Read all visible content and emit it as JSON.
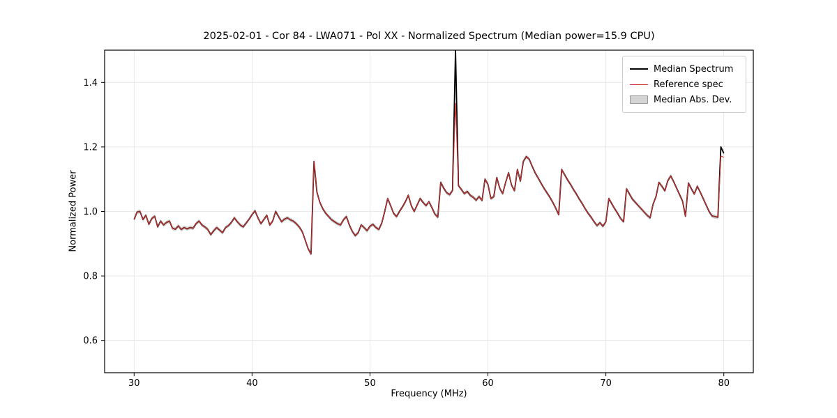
{
  "chart_data": {
    "type": "line",
    "title": "2025-02-01 - Cor 84 - LWA071 - Pol XX - Normalized Spectrum (Median power=15.9 CPU)",
    "xlabel": "Frequency (MHz)",
    "ylabel": "Normalized Power",
    "xlim": [
      27.5,
      82.5
    ],
    "ylim": [
      0.5,
      1.5
    ],
    "xticks": [
      30,
      40,
      50,
      60,
      70,
      80
    ],
    "xtick_labels": [
      "30",
      "40",
      "50",
      "60",
      "70",
      "80"
    ],
    "yticks": [
      0.6,
      0.8,
      1.0,
      1.2,
      1.4
    ],
    "ytick_labels": [
      "0.6",
      "0.8",
      "1.0",
      "1.2",
      "1.4"
    ],
    "grid": true,
    "legend_position": "upper right",
    "x_start": 30.0,
    "x_step": 0.25,
    "x_unit": "MHz",
    "mad_halfwidth": 0.006,
    "colors": {
      "median": "#000000",
      "reference": "#d93434",
      "mad_band": "#cccccc",
      "grid": "#e2e2e2",
      "frame": "#000000"
    },
    "legend": [
      {
        "label": "Median Spectrum",
        "swatch": "line-black"
      },
      {
        "label": "Reference spec",
        "swatch": "line-red"
      },
      {
        "label": "Median Abs. Dev.",
        "swatch": "band-gray"
      }
    ],
    "series": [
      {
        "name": "Median Spectrum",
        "color": "#000000",
        "linewidth": 1.8,
        "values": [
          0.975,
          0.998,
          1.0,
          0.975,
          0.988,
          0.96,
          0.978,
          0.985,
          0.952,
          0.97,
          0.958,
          0.966,
          0.97,
          0.948,
          0.945,
          0.955,
          0.944,
          0.95,
          0.946,
          0.95,
          0.948,
          0.962,
          0.97,
          0.958,
          0.952,
          0.944,
          0.928,
          0.94,
          0.95,
          0.942,
          0.934,
          0.95,
          0.956,
          0.966,
          0.98,
          0.968,
          0.958,
          0.952,
          0.964,
          0.976,
          0.99,
          1.002,
          0.98,
          0.962,
          0.975,
          0.988,
          0.958,
          0.97,
          1.0,
          0.984,
          0.968,
          0.976,
          0.98,
          0.974,
          0.97,
          0.962,
          0.952,
          0.938,
          0.912,
          0.885,
          0.868,
          1.155,
          1.06,
          1.028,
          1.008,
          0.994,
          0.984,
          0.974,
          0.968,
          0.962,
          0.958,
          0.974,
          0.984,
          0.958,
          0.938,
          0.925,
          0.934,
          0.958,
          0.95,
          0.94,
          0.954,
          0.96,
          0.95,
          0.944,
          0.964,
          1.0,
          1.04,
          1.018,
          0.994,
          0.984,
          1.0,
          1.014,
          1.03,
          1.05,
          1.018,
          1.0,
          1.02,
          1.04,
          1.028,
          1.018,
          1.03,
          1.012,
          0.992,
          0.982,
          1.09,
          1.072,
          1.058,
          1.052,
          1.065,
          1.5,
          1.08,
          1.068,
          1.055,
          1.062,
          1.05,
          1.044,
          1.035,
          1.046,
          1.034,
          1.1,
          1.084,
          1.04,
          1.046,
          1.105,
          1.072,
          1.055,
          1.09,
          1.12,
          1.082,
          1.064,
          1.13,
          1.094,
          1.155,
          1.17,
          1.162,
          1.14,
          1.12,
          1.104,
          1.088,
          1.072,
          1.058,
          1.044,
          1.028,
          1.01,
          0.99,
          1.13,
          1.114,
          1.098,
          1.084,
          1.068,
          1.054,
          1.038,
          1.024,
          1.008,
          0.994,
          0.982,
          0.968,
          0.956,
          0.965,
          0.954,
          0.968,
          1.04,
          1.024,
          1.008,
          0.994,
          0.978,
          0.968,
          1.07,
          1.054,
          1.038,
          1.028,
          1.018,
          1.008,
          0.998,
          0.988,
          0.98,
          1.022,
          1.046,
          1.09,
          1.078,
          1.064,
          1.095,
          1.11,
          1.092,
          1.072,
          1.052,
          1.032,
          0.985,
          1.088,
          1.07,
          1.054,
          1.078,
          1.06,
          1.04,
          1.02,
          1.0,
          0.986,
          0.984,
          0.982,
          1.2,
          1.18
        ]
      },
      {
        "name": "Reference spec",
        "color": "#d93434",
        "linewidth": 1.1,
        "values": [
          0.975,
          0.998,
          1.0,
          0.975,
          0.988,
          0.96,
          0.978,
          0.985,
          0.952,
          0.97,
          0.958,
          0.966,
          0.97,
          0.948,
          0.945,
          0.955,
          0.944,
          0.95,
          0.946,
          0.95,
          0.948,
          0.962,
          0.97,
          0.958,
          0.952,
          0.944,
          0.928,
          0.94,
          0.95,
          0.942,
          0.934,
          0.95,
          0.956,
          0.966,
          0.98,
          0.968,
          0.958,
          0.952,
          0.964,
          0.976,
          0.99,
          1.002,
          0.98,
          0.962,
          0.975,
          0.988,
          0.958,
          0.97,
          1.0,
          0.984,
          0.968,
          0.976,
          0.98,
          0.974,
          0.97,
          0.962,
          0.952,
          0.938,
          0.912,
          0.885,
          0.868,
          1.155,
          1.06,
          1.028,
          1.008,
          0.994,
          0.984,
          0.974,
          0.968,
          0.962,
          0.958,
          0.974,
          0.984,
          0.958,
          0.938,
          0.925,
          0.934,
          0.958,
          0.95,
          0.94,
          0.954,
          0.96,
          0.95,
          0.944,
          0.964,
          1.0,
          1.04,
          1.018,
          0.994,
          0.984,
          1.0,
          1.014,
          1.03,
          1.05,
          1.018,
          1.0,
          1.02,
          1.04,
          1.028,
          1.018,
          1.03,
          1.012,
          0.992,
          0.982,
          1.09,
          1.072,
          1.058,
          1.052,
          1.065,
          1.335,
          1.08,
          1.068,
          1.055,
          1.062,
          1.05,
          1.044,
          1.035,
          1.046,
          1.034,
          1.1,
          1.084,
          1.04,
          1.046,
          1.105,
          1.072,
          1.055,
          1.09,
          1.12,
          1.082,
          1.064,
          1.13,
          1.094,
          1.155,
          1.17,
          1.162,
          1.14,
          1.12,
          1.104,
          1.088,
          1.072,
          1.058,
          1.044,
          1.028,
          1.01,
          0.99,
          1.13,
          1.114,
          1.098,
          1.084,
          1.068,
          1.054,
          1.038,
          1.024,
          1.008,
          0.994,
          0.982,
          0.968,
          0.956,
          0.965,
          0.954,
          0.968,
          1.04,
          1.024,
          1.008,
          0.994,
          0.978,
          0.968,
          1.07,
          1.054,
          1.038,
          1.028,
          1.018,
          1.008,
          0.998,
          0.988,
          0.98,
          1.022,
          1.046,
          1.09,
          1.078,
          1.064,
          1.095,
          1.11,
          1.092,
          1.072,
          1.052,
          1.032,
          0.985,
          1.088,
          1.07,
          1.054,
          1.078,
          1.06,
          1.04,
          1.02,
          1.0,
          0.986,
          0.984,
          0.982,
          1.172,
          1.168
        ]
      }
    ]
  }
}
